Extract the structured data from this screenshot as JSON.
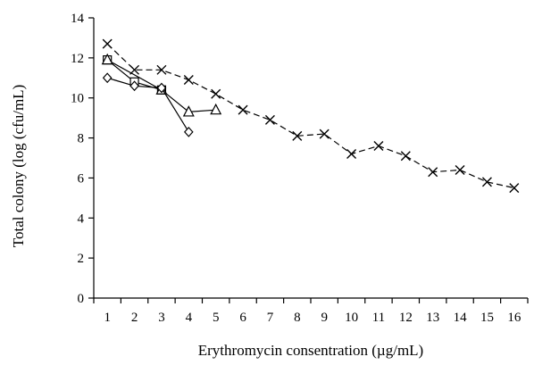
{
  "chart_data": {
    "type": "line",
    "title": "",
    "xlabel": "Erythromycin consentration (µg/mL)",
    "ylabel": "Total colony (log (cfu/mL)",
    "xlim": [
      0.5,
      16.5
    ],
    "ylim": [
      0,
      14
    ],
    "x_ticks": [
      1,
      2,
      3,
      4,
      5,
      6,
      7,
      8,
      9,
      10,
      11,
      12,
      13,
      14,
      15,
      16
    ],
    "y_ticks": [
      0,
      2,
      4,
      6,
      8,
      10,
      12,
      14
    ],
    "grid": false,
    "legend": "none",
    "series": [
      {
        "marker": "x",
        "dashed": true,
        "x": [
          1,
          2,
          3,
          4,
          5,
          6,
          7,
          8,
          9,
          10,
          11,
          12,
          13,
          14,
          15,
          16
        ],
        "y": [
          12.7,
          11.4,
          11.4,
          10.9,
          10.2,
          9.4,
          8.9,
          8.1,
          8.2,
          7.2,
          7.6,
          7.1,
          6.3,
          6.4,
          5.8,
          5.5
        ]
      },
      {
        "marker": "square",
        "dashed": false,
        "x": [
          1,
          2,
          3
        ],
        "y": [
          11.9,
          10.8,
          10.4
        ]
      },
      {
        "marker": "triangle",
        "dashed": false,
        "x": [
          1,
          3,
          4,
          5
        ],
        "y": [
          11.9,
          10.4,
          9.3,
          9.4
        ]
      },
      {
        "marker": "diamond",
        "dashed": false,
        "x": [
          1,
          2,
          3,
          4
        ],
        "y": [
          11.0,
          10.6,
          10.5,
          8.3
        ]
      }
    ]
  }
}
